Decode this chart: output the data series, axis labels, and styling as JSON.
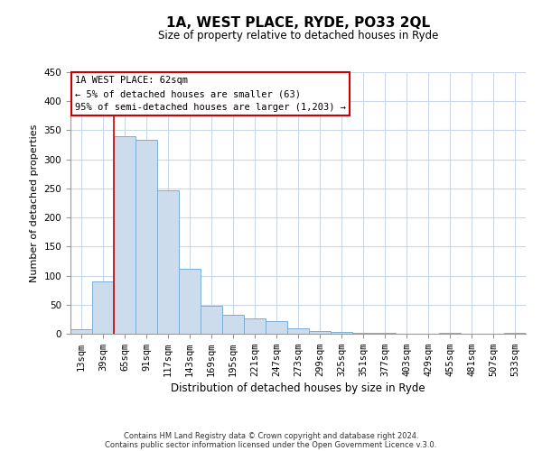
{
  "title": "1A, WEST PLACE, RYDE, PO33 2QL",
  "subtitle": "Size of property relative to detached houses in Ryde",
  "xlabel": "Distribution of detached houses by size in Ryde",
  "ylabel": "Number of detached properties",
  "bar_labels": [
    "13sqm",
    "39sqm",
    "65sqm",
    "91sqm",
    "117sqm",
    "143sqm",
    "169sqm",
    "195sqm",
    "221sqm",
    "247sqm",
    "273sqm",
    "299sqm",
    "325sqm",
    "351sqm",
    "377sqm",
    "403sqm",
    "429sqm",
    "455sqm",
    "481sqm",
    "507sqm",
    "533sqm"
  ],
  "bar_values": [
    7,
    90,
    340,
    333,
    246,
    111,
    48,
    32,
    26,
    21,
    10,
    5,
    3,
    1,
    2,
    0,
    0,
    1,
    0,
    0,
    1
  ],
  "bar_color": "#cddcec",
  "bar_edge_color": "#7aafd4",
  "vline_color": "#cc0000",
  "vline_index": 2,
  "annotation_box_text": "1A WEST PLACE: 62sqm\n← 5% of detached houses are smaller (63)\n95% of semi-detached houses are larger (1,203) →",
  "annotation_box_edge_color": "#cc0000",
  "ylim": [
    0,
    450
  ],
  "yticks": [
    0,
    50,
    100,
    150,
    200,
    250,
    300,
    350,
    400,
    450
  ],
  "footer_line1": "Contains HM Land Registry data © Crown copyright and database right 2024.",
  "footer_line2": "Contains public sector information licensed under the Open Government Licence v.3.0.",
  "bg_color": "#ffffff",
  "grid_color": "#c8d8e8",
  "title_fontsize": 11,
  "subtitle_fontsize": 8.5,
  "ylabel_fontsize": 8,
  "xlabel_fontsize": 8.5,
  "tick_fontsize": 7.5,
  "ann_fontsize": 7.5,
  "footer_fontsize": 6
}
